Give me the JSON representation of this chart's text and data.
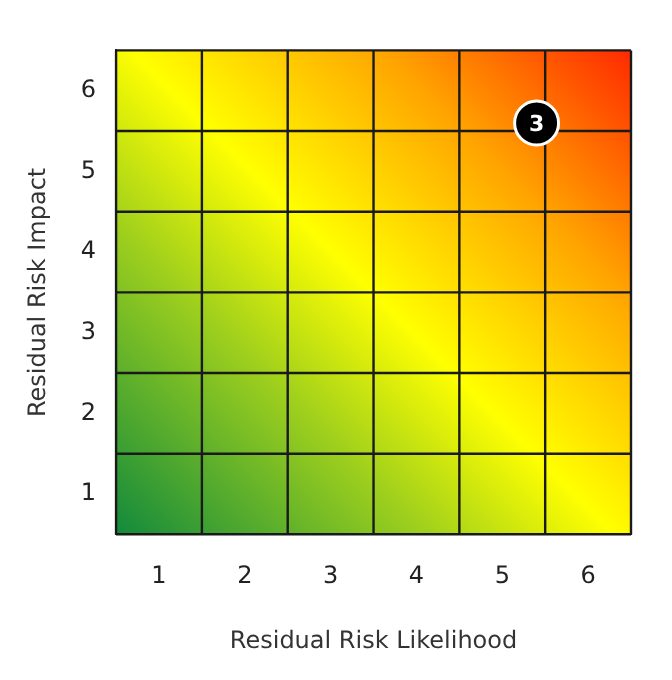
{
  "chart_data": {
    "type": "scatter",
    "xlabel": "Residual Risk Likelihood",
    "ylabel": "Residual Risk Impact",
    "x": [
      5.4
    ],
    "values": [
      5.6
    ],
    "annotations": [
      {
        "text": "3",
        "x": 5.4,
        "y": 5.6
      }
    ],
    "color": "#000000",
    "marker": "circle",
    "xlim": [
      0.5,
      6.5
    ],
    "ylim": [
      0.5,
      6.5
    ],
    "xticks": [
      1,
      2,
      3,
      4,
      5,
      6
    ],
    "yticks": [
      1,
      2,
      3,
      4,
      5,
      6
    ],
    "grid": true,
    "legend": false
  }
}
